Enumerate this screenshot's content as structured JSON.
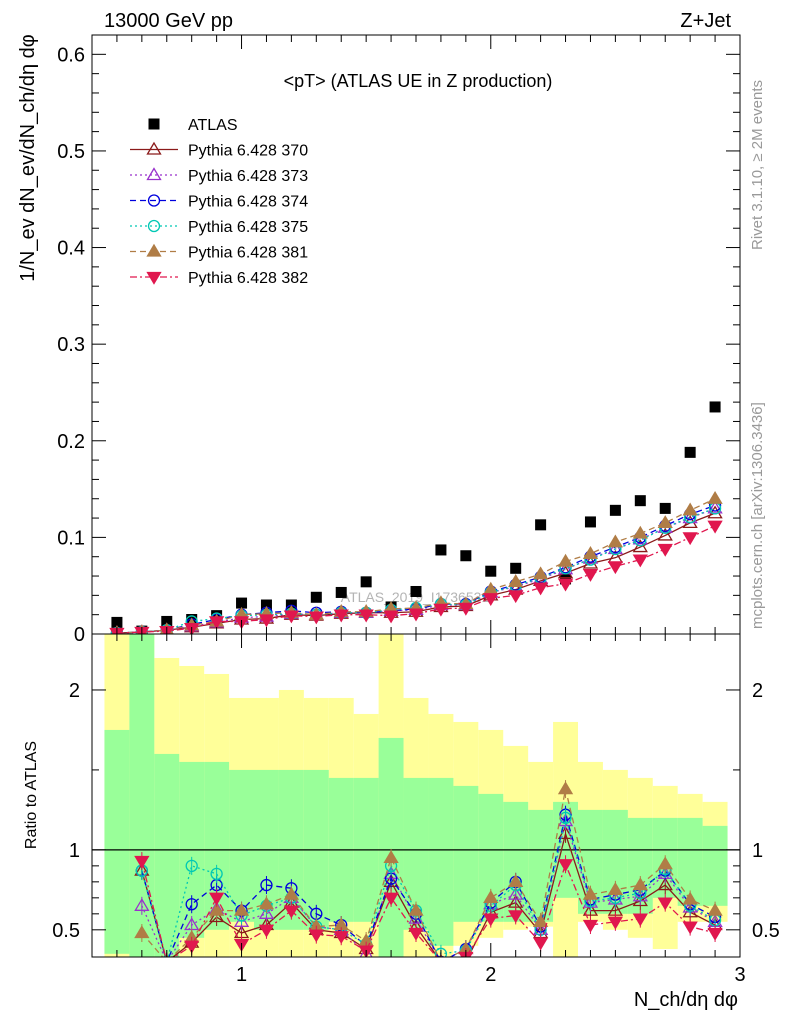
{
  "header": {
    "left": "13000 GeV pp",
    "right": "Z+Jet"
  },
  "side_labels": {
    "rivet": "Rivet 3.1.10, ≥ 2M events",
    "mcplots": "mcplots.cern.ch [arXiv:1306.3436]"
  },
  "watermark": "ATLAS_2019_I1736531",
  "chart_data": [
    {
      "type": "scatter",
      "title": "<pT> (ATLAS UE in Z production)",
      "ylabel": "1/N_ev dN_ev/dN_ch/dη dφ",
      "xlim": [
        0.4,
        3.0
      ],
      "ylim": [
        0.0,
        0.62
      ],
      "yticks": [
        0,
        0.1,
        0.2,
        0.3,
        0.4,
        0.5,
        0.6
      ],
      "ytick_labels": [
        "0",
        "0.1",
        "0.2",
        "0.3",
        "0.4",
        "0.5",
        "0.6"
      ],
      "legend_position": "top-left",
      "x": [
        0.5,
        0.6,
        0.7,
        0.8,
        0.9,
        1.0,
        1.1,
        1.2,
        1.3,
        1.4,
        1.5,
        1.6,
        1.7,
        1.8,
        1.9,
        2.0,
        2.1,
        2.2,
        2.3,
        2.4,
        2.5,
        2.6,
        2.7,
        2.8,
        2.9
      ],
      "series": [
        {
          "name": "ATLAS",
          "color": "#000000",
          "marker": "square",
          "line": "none",
          "values": [
            0.012,
            0.003,
            0.013,
            0.015,
            0.019,
            0.032,
            0.03,
            0.03,
            0.038,
            0.043,
            0.054,
            0.028,
            0.044,
            0.087,
            0.081,
            0.065,
            0.068,
            0.113,
            0.057,
            0.116,
            0.128,
            0.138,
            0.13,
            0.188,
            0.235
          ]
        },
        {
          "name": "Pythia 6.428 370",
          "color": "#8b1a1a",
          "marker": "triangle-open",
          "line": "solid",
          "values": [
            0.001,
            0.002,
            0.004,
            0.007,
            0.011,
            0.015,
            0.016,
            0.02,
            0.019,
            0.021,
            0.022,
            0.022,
            0.023,
            0.028,
            0.029,
            0.04,
            0.046,
            0.055,
            0.063,
            0.073,
            0.079,
            0.09,
            0.102,
            0.115,
            0.125
          ]
        },
        {
          "name": "Pythia 6.428 373",
          "color": "#9932cc",
          "marker": "triangle-open",
          "line": "dotted",
          "values": [
            0.001,
            0.002,
            0.004,
            0.008,
            0.012,
            0.017,
            0.018,
            0.021,
            0.02,
            0.022,
            0.022,
            0.024,
            0.025,
            0.03,
            0.03,
            0.043,
            0.049,
            0.057,
            0.067,
            0.078,
            0.088,
            0.098,
            0.11,
            0.12,
            0.13
          ]
        },
        {
          "name": "Pythia 6.428 374",
          "color": "#0000dd",
          "marker": "circle-open",
          "line": "dashed",
          "values": [
            0.001,
            0.002,
            0.004,
            0.01,
            0.015,
            0.02,
            0.022,
            0.024,
            0.022,
            0.023,
            0.022,
            0.024,
            0.026,
            0.031,
            0.031,
            0.044,
            0.051,
            0.059,
            0.069,
            0.08,
            0.09,
            0.1,
            0.112,
            0.124,
            0.133
          ]
        },
        {
          "name": "Pythia 6.428 375",
          "color": "#00c8b4",
          "marker": "circle-open",
          "line": "dotted",
          "values": [
            0.001,
            0.002,
            0.004,
            0.013,
            0.016,
            0.019,
            0.02,
            0.021,
            0.02,
            0.022,
            0.022,
            0.025,
            0.027,
            0.031,
            0.03,
            0.043,
            0.05,
            0.058,
            0.068,
            0.077,
            0.088,
            0.097,
            0.11,
            0.121,
            0.13
          ]
        },
        {
          "name": "Pythia 6.428 381",
          "color": "#b07d46",
          "marker": "triangle-filled",
          "line": "dashed",
          "values": [
            0.001,
            0.002,
            0.004,
            0.009,
            0.013,
            0.02,
            0.021,
            0.022,
            0.02,
            0.023,
            0.023,
            0.026,
            0.027,
            0.032,
            0.031,
            0.046,
            0.054,
            0.062,
            0.075,
            0.083,
            0.095,
            0.104,
            0.115,
            0.128,
            0.14
          ]
        },
        {
          "name": "Pythia 6.428 382",
          "color": "#e0174e",
          "marker": "triangle-down-filled",
          "line": "dashdot",
          "values": [
            0.001,
            0.002,
            0.003,
            0.006,
            0.013,
            0.013,
            0.015,
            0.019,
            0.018,
            0.02,
            0.02,
            0.019,
            0.021,
            0.026,
            0.027,
            0.037,
            0.04,
            0.048,
            0.052,
            0.062,
            0.07,
            0.077,
            0.088,
            0.1,
            0.112
          ]
        }
      ]
    },
    {
      "type": "line",
      "ylabel": "Ratio to ATLAS",
      "xlabel": "N_ch/dη dφ",
      "xlim": [
        0.4,
        3.0
      ],
      "ylim": [
        0.33,
        2.35
      ],
      "xticks": [
        1,
        2,
        3
      ],
      "xtick_labels": [
        "1",
        "2",
        "3"
      ],
      "yticks": [
        0.5,
        1,
        2
      ],
      "ytick_labels": [
        "0.5",
        "1",
        "2"
      ],
      "reference_line": 1,
      "band_colors": {
        "inner": "#99ff99",
        "outer": "#ffff99"
      },
      "x": [
        0.5,
        0.6,
        0.7,
        0.8,
        0.9,
        1.0,
        1.1,
        1.2,
        1.3,
        1.4,
        1.5,
        1.6,
        1.7,
        1.8,
        1.9,
        2.0,
        2.1,
        2.2,
        2.3,
        2.4,
        2.5,
        2.6,
        2.7,
        2.8,
        2.9
      ],
      "band_inner_low": [
        0.35,
        0.3,
        0.3,
        0.45,
        0.5,
        0.55,
        0.5,
        0.5,
        0.5,
        0.55,
        0.55,
        0.3,
        0.5,
        0.4,
        0.55,
        0.55,
        0.55,
        0.55,
        0.7,
        0.6,
        0.6,
        0.6,
        0.7,
        0.65,
        0.65
      ],
      "band_inner_high": [
        1.75,
        2.35,
        1.6,
        1.55,
        1.55,
        1.5,
        1.5,
        1.5,
        1.5,
        1.45,
        1.45,
        1.7,
        1.45,
        1.45,
        1.4,
        1.35,
        1.3,
        1.25,
        1.3,
        1.25,
        1.25,
        1.2,
        1.2,
        1.2,
        1.15
      ],
      "band_outer_low": [
        0.3,
        0.3,
        0.3,
        0.3,
        0.3,
        0.3,
        0.3,
        0.3,
        0.3,
        0.3,
        0.3,
        0.3,
        0.3,
        0.3,
        0.4,
        0.45,
        0.5,
        0.52,
        0.3,
        0.55,
        0.5,
        0.45,
        0.38,
        0.55,
        0.55
      ],
      "band_outer_high": [
        2.35,
        2.35,
        2.2,
        2.15,
        2.1,
        1.95,
        1.95,
        2.0,
        1.95,
        1.95,
        1.85,
        2.35,
        1.95,
        1.85,
        1.8,
        1.75,
        1.65,
        1.55,
        1.8,
        1.55,
        1.5,
        1.45,
        1.4,
        1.35,
        1.3
      ],
      "series": [
        {
          "name": "Pythia 6.428 370",
          "color": "#8b1a1a",
          "marker": "triangle-open",
          "line": "solid",
          "values": [
            null,
            0.87,
            0.3,
            0.42,
            0.58,
            0.48,
            0.53,
            0.67,
            0.5,
            0.48,
            0.38,
            0.8,
            0.52,
            0.3,
            0.3,
            0.61,
            0.67,
            0.48,
            1.1,
            0.62,
            0.62,
            0.68,
            0.78,
            0.61,
            0.53
          ]
        },
        {
          "name": "Pythia 6.428 373",
          "color": "#9932cc",
          "marker": "triangle-open",
          "line": "dotted",
          "values": [
            null,
            0.65,
            0.3,
            0.53,
            0.63,
            0.55,
            0.6,
            0.7,
            0.52,
            0.5,
            0.35,
            0.85,
            0.57,
            0.3,
            0.38,
            0.66,
            0.72,
            0.5,
            1.18,
            0.67,
            0.69,
            0.71,
            0.85,
            0.64,
            0.55
          ]
        },
        {
          "name": "Pythia 6.428 374",
          "color": "#0000dd",
          "marker": "circle-open",
          "line": "dashed",
          "values": [
            null,
            0.87,
            0.3,
            0.66,
            0.78,
            0.62,
            0.78,
            0.76,
            0.6,
            0.53,
            0.4,
            0.82,
            0.6,
            0.3,
            0.38,
            0.67,
            0.8,
            0.52,
            1.22,
            0.69,
            0.72,
            0.75,
            0.87,
            0.66,
            0.58
          ]
        },
        {
          "name": "Pythia 6.428 375",
          "color": "#00c8b4",
          "marker": "circle-open",
          "line": "dotted",
          "values": [
            null,
            0.87,
            0.3,
            0.9,
            0.85,
            0.59,
            0.65,
            0.7,
            0.52,
            0.5,
            0.41,
            0.9,
            0.62,
            0.35,
            0.37,
            0.65,
            0.78,
            0.5,
            1.2,
            0.68,
            0.7,
            0.73,
            0.88,
            0.65,
            0.56
          ]
        },
        {
          "name": "Pythia 6.428 381",
          "color": "#b07d46",
          "marker": "triangle-filled",
          "line": "dashed",
          "values": [
            null,
            0.48,
            0.3,
            0.45,
            0.62,
            0.62,
            0.66,
            0.72,
            0.52,
            0.53,
            0.43,
            0.95,
            0.62,
            0.3,
            0.38,
            0.7,
            0.8,
            0.55,
            1.38,
            0.72,
            0.75,
            0.78,
            0.91,
            0.69,
            0.62
          ]
        },
        {
          "name": "Pythia 6.428 382",
          "color": "#e0174e",
          "marker": "triangle-down-filled",
          "line": "dashdot",
          "values": [
            null,
            0.93,
            0.3,
            0.4,
            0.7,
            0.41,
            0.5,
            0.62,
            0.47,
            0.46,
            0.37,
            0.7,
            0.48,
            0.3,
            0.33,
            0.57,
            0.59,
            0.42,
            0.91,
            0.53,
            0.55,
            0.57,
            0.67,
            0.52,
            0.48
          ]
        }
      ]
    }
  ]
}
